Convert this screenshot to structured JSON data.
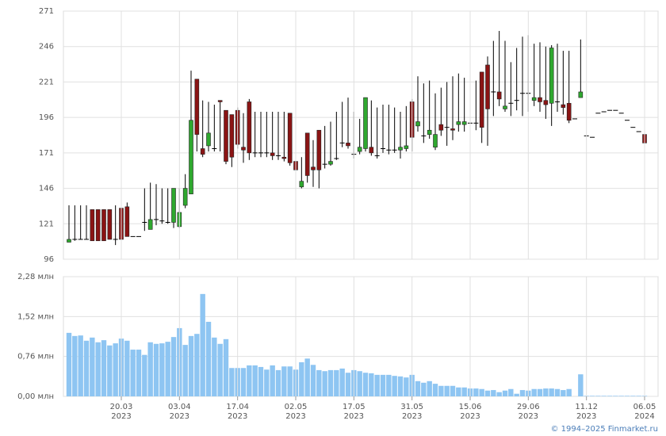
{
  "chart_data": [
    {
      "type": "candlestick",
      "up_color": "#2fa82f",
      "down_color": "#8b1414",
      "grid": true,
      "ylim": [
        96,
        271
      ],
      "yticks": [
        96,
        121,
        146,
        171,
        196,
        221,
        246,
        271
      ],
      "open": [
        108,
        110,
        110,
        110,
        131,
        131,
        131,
        131,
        110,
        132,
        133,
        112,
        112,
        122,
        117,
        124,
        123,
        122,
        122,
        119,
        134,
        142,
        223,
        174,
        176,
        174,
        208,
        201,
        198,
        201,
        175,
        207,
        171,
        171,
        171,
        171,
        169,
        168,
        199,
        165,
        147,
        185,
        161,
        187,
        163,
        163,
        167,
        178,
        178,
        170,
        172,
        174,
        175,
        169,
        174,
        173,
        173,
        173,
        174,
        207,
        190,
        183,
        184,
        175,
        191,
        189,
        188,
        191,
        191,
        192,
        192,
        228,
        233,
        214,
        214,
        202,
        206,
        208,
        213,
        213,
        208,
        210,
        208,
        206,
        207,
        205,
        206,
        195,
        210,
        183,
        182,
        199,
        200,
        201,
        201,
        199,
        194,
        189,
        186,
        184
      ],
      "high": [
        134,
        134,
        134,
        134,
        131,
        131,
        131,
        131,
        134,
        134,
        136,
        112,
        112,
        146,
        150,
        149,
        146,
        146,
        146,
        146,
        156,
        229,
        223,
        208,
        207,
        205,
        208,
        201,
        198,
        203,
        199,
        209,
        200,
        200,
        200,
        200,
        200,
        200,
        199,
        199,
        168,
        185,
        180,
        187,
        190,
        193,
        200,
        207,
        210,
        200,
        195,
        210,
        208,
        203,
        205,
        205,
        203,
        200,
        204,
        209,
        225,
        220,
        222,
        213,
        217,
        221,
        225,
        227,
        224,
        222,
        222,
        228,
        239,
        250,
        257,
        250,
        235,
        245,
        253,
        254,
        248,
        249,
        246,
        247,
        248,
        243,
        243,
        195,
        251,
        183,
        182,
        199,
        200,
        201,
        201,
        199,
        194,
        189,
        186,
        184
      ],
      "low": [
        109,
        109,
        110,
        110,
        109,
        109,
        109,
        110,
        106,
        110,
        112,
        112,
        112,
        116,
        117,
        120,
        121,
        121,
        118,
        118,
        132,
        142,
        172,
        168,
        172,
        172,
        172,
        163,
        161,
        174,
        164,
        166,
        168,
        168,
        168,
        166,
        166,
        165,
        162,
        155,
        146,
        150,
        147,
        146,
        160,
        162,
        166,
        175,
        174,
        167,
        170,
        172,
        169,
        167,
        171,
        170,
        171,
        167,
        172,
        172,
        186,
        178,
        181,
        173,
        183,
        176,
        180,
        186,
        186,
        187,
        187,
        178,
        176,
        197,
        204,
        200,
        197,
        201,
        197,
        200,
        204,
        200,
        195,
        190,
        200,
        198,
        192,
        195,
        210,
        183,
        182,
        199,
        200,
        201,
        201,
        199,
        194,
        189,
        186,
        178
      ],
      "close": [
        110,
        110,
        110,
        110,
        109,
        109,
        109,
        110,
        110,
        110,
        112,
        112,
        112,
        122,
        124,
        124,
        123,
        122,
        146,
        129,
        146,
        194,
        184,
        170,
        185,
        174,
        207,
        165,
        168,
        177,
        173,
        171,
        171,
        171,
        171,
        169,
        169,
        167,
        164,
        159,
        151,
        155,
        159,
        159,
        163,
        165,
        167,
        178,
        176,
        170,
        175,
        210,
        171,
        169,
        174,
        173,
        173,
        175,
        176,
        182,
        193,
        183,
        187,
        184,
        187,
        189,
        187,
        193,
        193,
        192,
        192,
        189,
        202,
        214,
        209,
        204,
        206,
        208,
        213,
        213,
        210,
        207,
        205,
        245,
        207,
        203,
        194,
        195,
        214,
        183,
        182,
        199,
        200,
        201,
        201,
        199,
        194,
        189,
        186,
        178
      ]
    },
    {
      "type": "bar",
      "color": "#8ec5f2",
      "grid": true,
      "ylim": [
        0,
        2.28
      ],
      "yticks": [
        {
          "value": 0,
          "label": "0,00 млн"
        },
        {
          "value": 0.76,
          "label": "0,76 млн"
        },
        {
          "value": 1.52,
          "label": "1,52 млн"
        },
        {
          "value": 2.28,
          "label": "2,28 млн"
        }
      ],
      "categories": [
        null,
        null,
        null,
        null,
        null,
        null,
        null,
        null,
        null,
        {
          "date": "20.03",
          "year": "2023"
        },
        null,
        null,
        null,
        null,
        null,
        null,
        null,
        null,
        null,
        {
          "date": "03.04",
          "year": "2023"
        },
        null,
        null,
        null,
        null,
        null,
        null,
        null,
        null,
        null,
        {
          "date": "17.04",
          "year": "2023"
        },
        null,
        null,
        null,
        null,
        null,
        null,
        null,
        null,
        null,
        {
          "date": "02.05",
          "year": "2023"
        },
        null,
        null,
        null,
        null,
        null,
        null,
        null,
        null,
        null,
        {
          "date": "17.05",
          "year": "2023"
        },
        null,
        null,
        null,
        null,
        null,
        null,
        null,
        null,
        null,
        {
          "date": "31.05",
          "year": "2023"
        },
        null,
        null,
        null,
        null,
        null,
        null,
        null,
        null,
        null,
        {
          "date": "15.06",
          "year": "2023"
        },
        null,
        null,
        null,
        null,
        null,
        null,
        null,
        null,
        null,
        {
          "date": "29.06",
          "year": "2023"
        },
        null,
        null,
        null,
        null,
        null,
        null,
        null,
        null,
        null,
        {
          "date": "11.12",
          "year": "2023"
        },
        null,
        null,
        null,
        null,
        null,
        null,
        null,
        null,
        null,
        {
          "date": "06.05",
          "year": "2024"
        }
      ],
      "values": [
        1.21,
        1.15,
        1.16,
        1.06,
        1.12,
        1.03,
        1.07,
        0.97,
        1.01,
        1.1,
        1.06,
        0.89,
        0.89,
        0.79,
        1.03,
        1.0,
        1.01,
        1.04,
        1.13,
        1.3,
        0.98,
        1.15,
        1.19,
        1.95,
        1.42,
        1.12,
        1.0,
        1.09,
        0.54,
        0.54,
        0.54,
        0.59,
        0.59,
        0.56,
        0.51,
        0.59,
        0.5,
        0.57,
        0.57,
        0.51,
        0.65,
        0.72,
        0.6,
        0.5,
        0.48,
        0.5,
        0.5,
        0.53,
        0.45,
        0.5,
        0.48,
        0.45,
        0.44,
        0.41,
        0.41,
        0.41,
        0.39,
        0.38,
        0.36,
        0.41,
        0.29,
        0.26,
        0.29,
        0.24,
        0.2,
        0.2,
        0.2,
        0.17,
        0.17,
        0.15,
        0.15,
        0.14,
        0.11,
        0.12,
        0.08,
        0.11,
        0.14,
        0.05,
        0.12,
        0.11,
        0.14,
        0.14,
        0.15,
        0.15,
        0.14,
        0.12,
        0.14,
        0,
        0.42,
        0.01,
        0.01,
        0.01,
        0.01,
        0.01,
        0.01,
        0.01,
        0.01,
        0.01,
        0.01,
        0.01
      ]
    }
  ],
  "copyright": "© 1994–2025 Finmarket.ru"
}
